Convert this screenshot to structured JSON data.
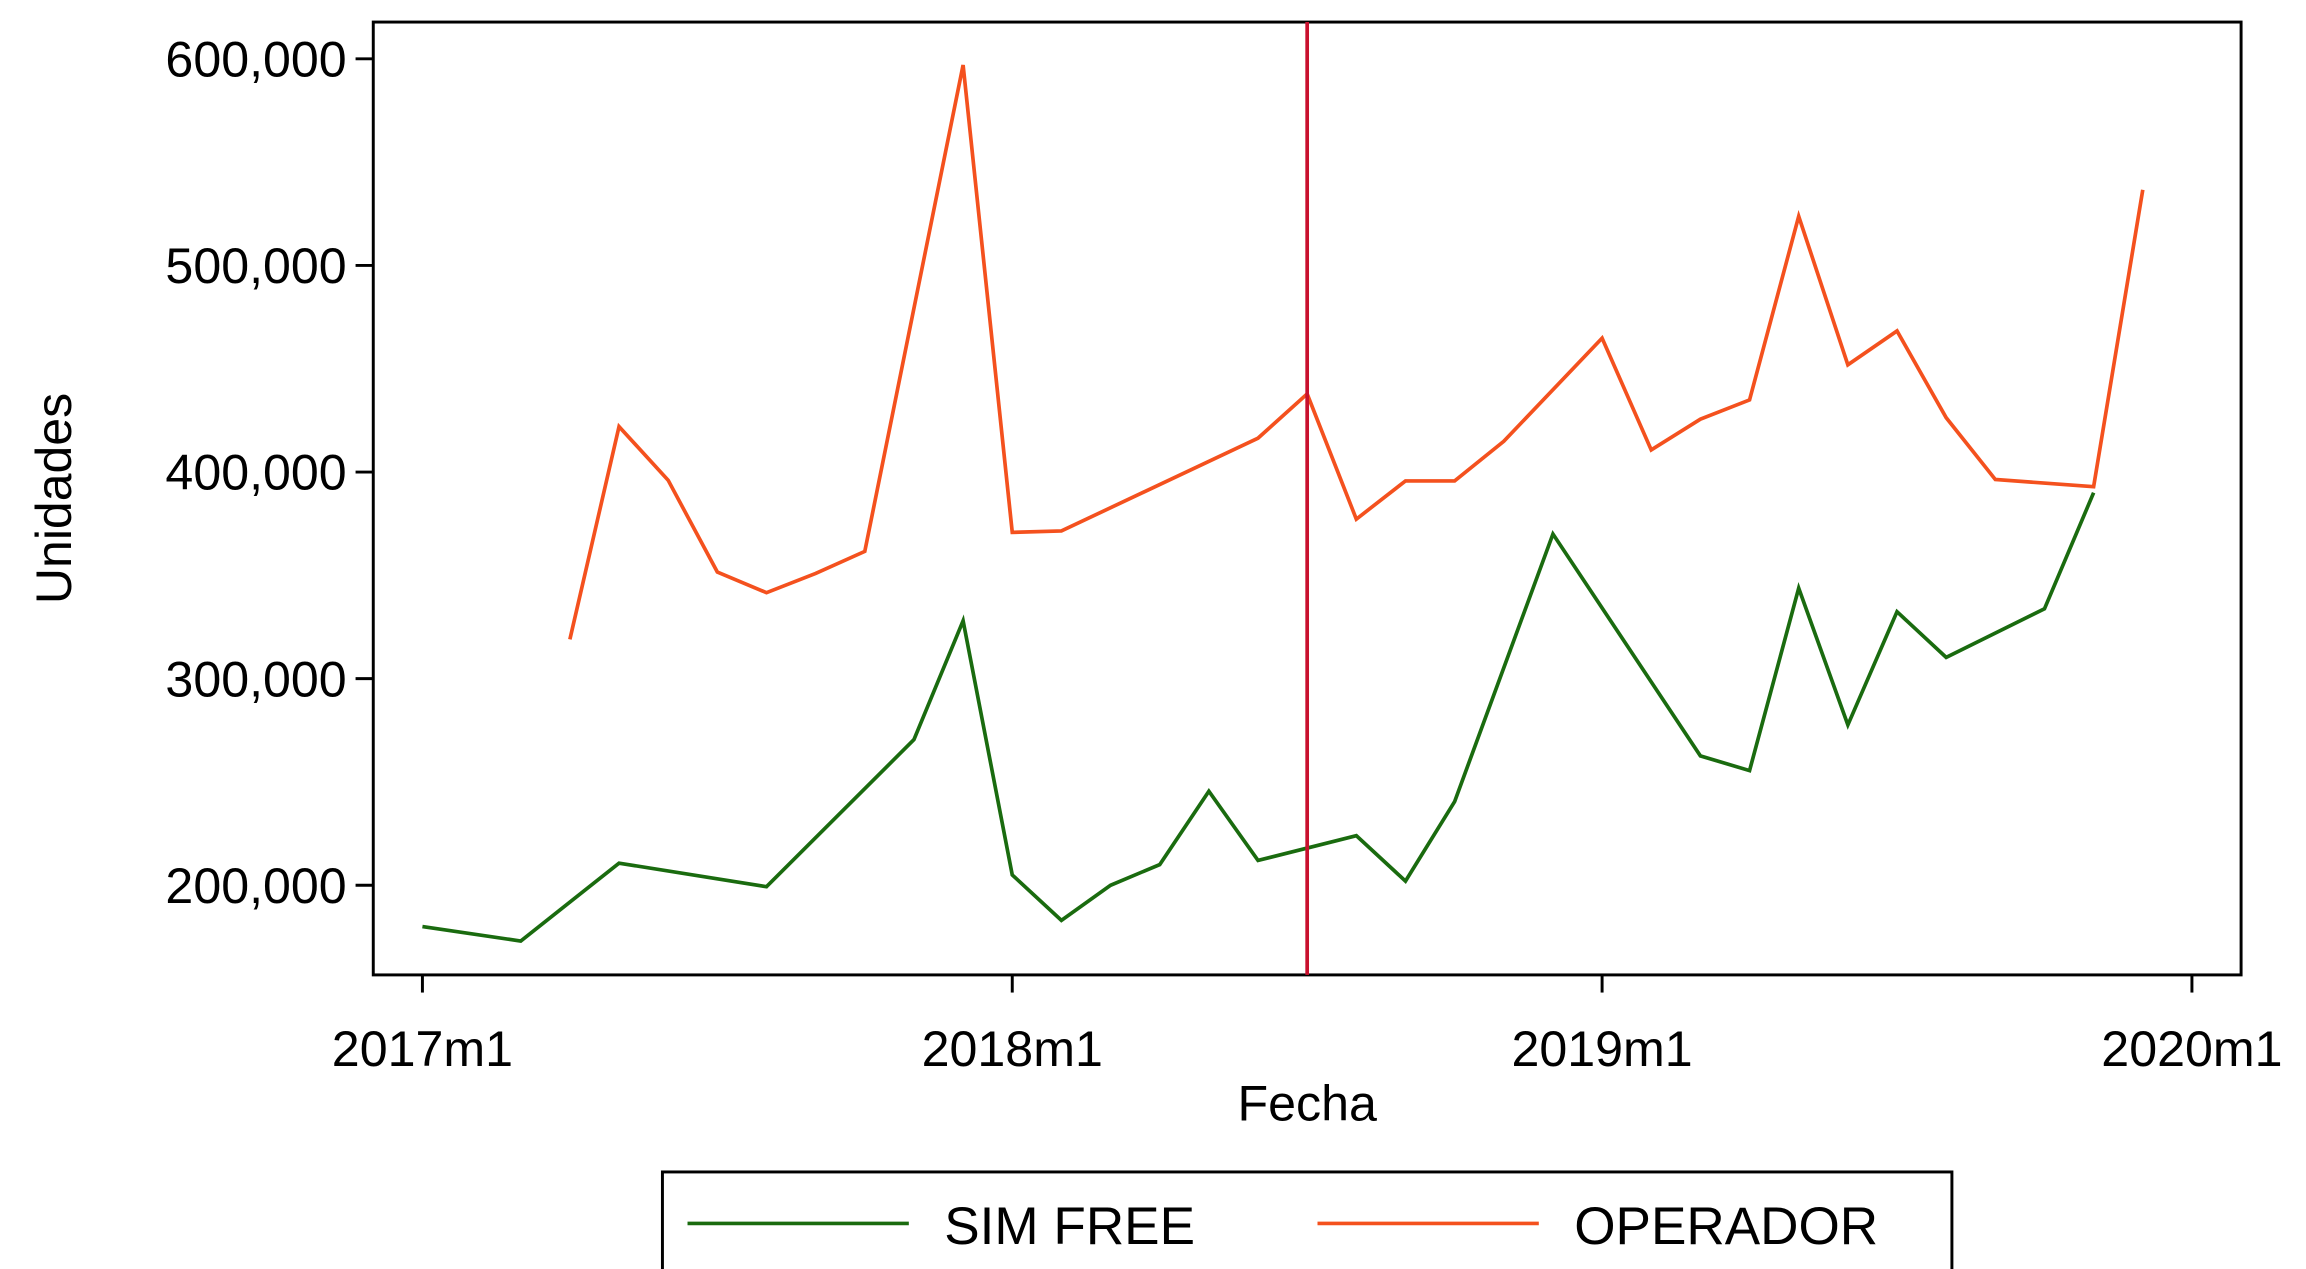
{
  "chart_data": {
    "type": "line",
    "ylabel": "Unidades",
    "xlabel": "Fecha",
    "xlim": [
      "2016m12",
      "2020m2"
    ],
    "xticks": [
      "2017m1",
      "2018m1",
      "2019m1",
      "2020m1"
    ],
    "ylim": [
      156600,
      617800
    ],
    "yticks": [
      {
        "value": 200000,
        "label": "200,000"
      },
      {
        "value": 300000,
        "label": "300,000"
      },
      {
        "value": 400000,
        "label": "400,000"
      },
      {
        "value": 500000,
        "label": "500,000"
      },
      {
        "value": 600000,
        "label": "600,000"
      }
    ],
    "vline": "2018m7",
    "vline_color": "#c8102e",
    "series": [
      {
        "name": "SIM FREE",
        "color": "#1a6b0f",
        "x": [
          "2017m1",
          "2017m3",
          "2017m5",
          "2017m8",
          "2017m11",
          "2017m12",
          "2018m1",
          "2018m2",
          "2018m3",
          "2018m4",
          "2018m5",
          "2018m6",
          "2018m8",
          "2018m9",
          "2018m10",
          "2018m12",
          "2019m3",
          "2019m4",
          "2019m5",
          "2019m6",
          "2019m7",
          "2019m8",
          "2019m10",
          "2019m11"
        ],
        "values": [
          180000,
          173000,
          210700,
          199300,
          270500,
          328000,
          205000,
          183000,
          200000,
          210000,
          245500,
          212000,
          224000,
          202000,
          240500,
          370000,
          262600,
          255500,
          343800,
          277600,
          332400,
          310300,
          333800,
          390000
        ]
      },
      {
        "name": "OPERADOR",
        "color": "#f4511e",
        "x": [
          "2017m4",
          "2017m5",
          "2017m6",
          "2017m7",
          "2017m8",
          "2017m9",
          "2017m10",
          "2017m12",
          "2018m1",
          "2018m2",
          "2018m6",
          "2018m7",
          "2018m8",
          "2018m9",
          "2018m10",
          "2018m11",
          "2019m1",
          "2019m2",
          "2019m3",
          "2019m4",
          "2019m5",
          "2019m6",
          "2019m7",
          "2019m8",
          "2019m9",
          "2019m11",
          "2019m12"
        ],
        "values": [
          319000,
          422000,
          396000,
          351600,
          341600,
          350900,
          361600,
          597000,
          370800,
          371500,
          416400,
          437800,
          377200,
          395700,
          395700,
          414900,
          464800,
          410700,
          425600,
          434900,
          523800,
          451900,
          468300,
          426300,
          396400,
          392900,
          536600
        ]
      }
    ]
  }
}
